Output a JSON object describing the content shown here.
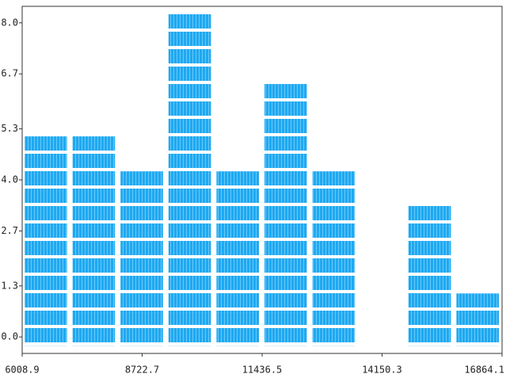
{
  "chart_data": {
    "type": "histogram",
    "bins": [
      6008.9,
      7094.42,
      8179.94,
      9265.46,
      10350.98,
      11436.5,
      12522.02,
      13607.54,
      14693.06,
      15778.58,
      16864.1
    ],
    "counts": [
      5.33,
      5.33,
      4.44,
      8.44,
      4.44,
      6.67,
      4.44,
      0,
      3.56,
      1.33
    ],
    "color": "#1ea9f2",
    "xlim": [
      6008.9,
      16864.1
    ],
    "xticks": [
      6008.9,
      8722.7,
      11436.5,
      14150.3,
      16864.1
    ],
    "ylim": [
      -0.42,
      8.42
    ],
    "yticks": [
      {
        "value": 0,
        "label": "0.0"
      },
      1.3,
      2.7,
      {
        "value": 4,
        "label": "4.0"
      },
      5.3,
      6.7,
      {
        "value": 8,
        "label": "8.0"
      }
    ],
    "grid": false
  }
}
